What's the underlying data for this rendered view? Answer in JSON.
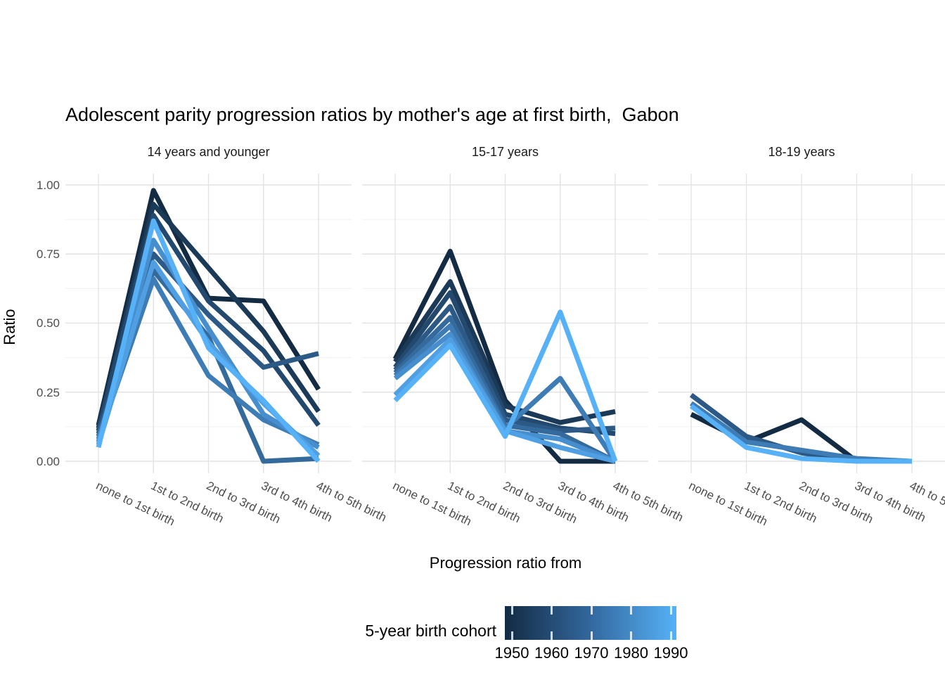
{
  "title": "Adolescent parity progression ratios by mother's age at first birth,  Gabon",
  "y_axis": {
    "label": "Ratio",
    "ticks": [
      "1.00",
      "0.75",
      "0.50",
      "0.25",
      "0.00"
    ]
  },
  "x_axis": {
    "label": "Progression ratio from"
  },
  "legend": {
    "title": "5-year birth cohort",
    "ticks": [
      "1950",
      "1960",
      "1970",
      "1980",
      "1990"
    ],
    "gradient_low": "#132B43",
    "gradient_mid": "#33689E",
    "gradient_high": "#56B1F7"
  },
  "chart_data": {
    "type": "line",
    "title": "Adolescent parity progression ratios by mother's age at first birth,  Gabon",
    "xlabel": "Progression ratio from",
    "ylabel": "Ratio",
    "ylim": [
      0,
      1
    ],
    "yticks": [
      0,
      0.25,
      0.5,
      0.75,
      1
    ],
    "grid": "on",
    "legend_title": "5-year birth cohort",
    "legend_position": "bottom",
    "color_scale": {
      "1950": "#132B43",
      "1990": "#56B1F7"
    },
    "categories": [
      "none to 1st birth",
      "1st to 2nd birth",
      "2nd to 3rd birth",
      "3rd to 4th birth",
      "4th to 5th birth"
    ],
    "facets": [
      {
        "label": "14 years and younger",
        "series": [
          {
            "name": "1950",
            "color": "#132B43",
            "values": [
              0.13,
              0.98,
              0.59,
              0.58,
              0.26
            ]
          },
          {
            "name": "1955",
            "color": "#1B3A58",
            "values": [
              0.12,
              0.93,
              0.7,
              0.47,
              0.18
            ]
          },
          {
            "name": "1960",
            "color": "#23496E",
            "values": [
              0.11,
              0.89,
              0.58,
              0.4,
              0.13
            ]
          },
          {
            "name": "1965",
            "color": "#2C5985",
            "values": [
              0.1,
              0.75,
              0.53,
              0.34,
              0.39
            ]
          },
          {
            "name": "1970",
            "color": "#356A9D",
            "values": [
              0.09,
              0.69,
              0.45,
              0.0,
              0.01
            ]
          },
          {
            "name": "1975",
            "color": "#3E7CB5",
            "values": [
              0.08,
              0.66,
              0.31,
              0.15,
              0.06
            ]
          },
          {
            "name": "1980",
            "color": "#478ECE",
            "values": [
              0.07,
              0.8,
              0.48,
              0.17,
              0.05
            ]
          },
          {
            "name": "1985",
            "color": "#4F9FE2",
            "values": [
              0.06,
              0.72,
              0.43,
              0.21,
              0.02
            ]
          },
          {
            "name": "1990",
            "color": "#56B1F7",
            "values": [
              0.05,
              0.87,
              0.41,
              0.22,
              0.0
            ]
          }
        ]
      },
      {
        "label": "15-17 years",
        "series": [
          {
            "name": "1950",
            "color": "#132B43",
            "values": [
              0.37,
              0.76,
              0.22,
              0.0,
              0.0
            ]
          },
          {
            "name": "1955",
            "color": "#1B3A58",
            "values": [
              0.36,
              0.65,
              0.2,
              0.14,
              0.18
            ]
          },
          {
            "name": "1960",
            "color": "#23496E",
            "values": [
              0.34,
              0.61,
              0.17,
              0.12,
              0.1
            ]
          },
          {
            "name": "1965",
            "color": "#2C5985",
            "values": [
              0.33,
              0.56,
              0.15,
              0.11,
              0.12
            ]
          },
          {
            "name": "1970",
            "color": "#356A9D",
            "values": [
              0.32,
              0.52,
              0.13,
              0.1,
              0.0
            ]
          },
          {
            "name": "1975",
            "color": "#3E7CB5",
            "values": [
              0.31,
              0.49,
              0.12,
              0.3,
              0.0
            ]
          },
          {
            "name": "1980",
            "color": "#478ECE",
            "values": [
              0.3,
              0.46,
              0.11,
              0.08,
              0.0
            ]
          },
          {
            "name": "1985",
            "color": "#4F9FE2",
            "values": [
              0.24,
              0.44,
              0.11,
              0.05,
              0.0
            ]
          },
          {
            "name": "1990",
            "color": "#56B1F7",
            "values": [
              0.22,
              0.42,
              0.09,
              0.54,
              0.0
            ]
          }
        ]
      },
      {
        "label": "18-19 years",
        "series": [
          {
            "name": "1950",
            "color": "#132B43",
            "values": [
              0.17,
              0.07,
              0.15,
              0.0,
              0.0
            ]
          },
          {
            "name": "1965",
            "color": "#2C5985",
            "values": [
              0.24,
              0.09,
              0.03,
              0.0,
              0.0
            ]
          },
          {
            "name": "1975",
            "color": "#3E7CB5",
            "values": [
              0.21,
              0.07,
              0.04,
              0.01,
              0.0
            ]
          },
          {
            "name": "1990",
            "color": "#56B1F7",
            "values": [
              0.2,
              0.05,
              0.01,
              0.0,
              0.0
            ]
          }
        ]
      }
    ]
  }
}
